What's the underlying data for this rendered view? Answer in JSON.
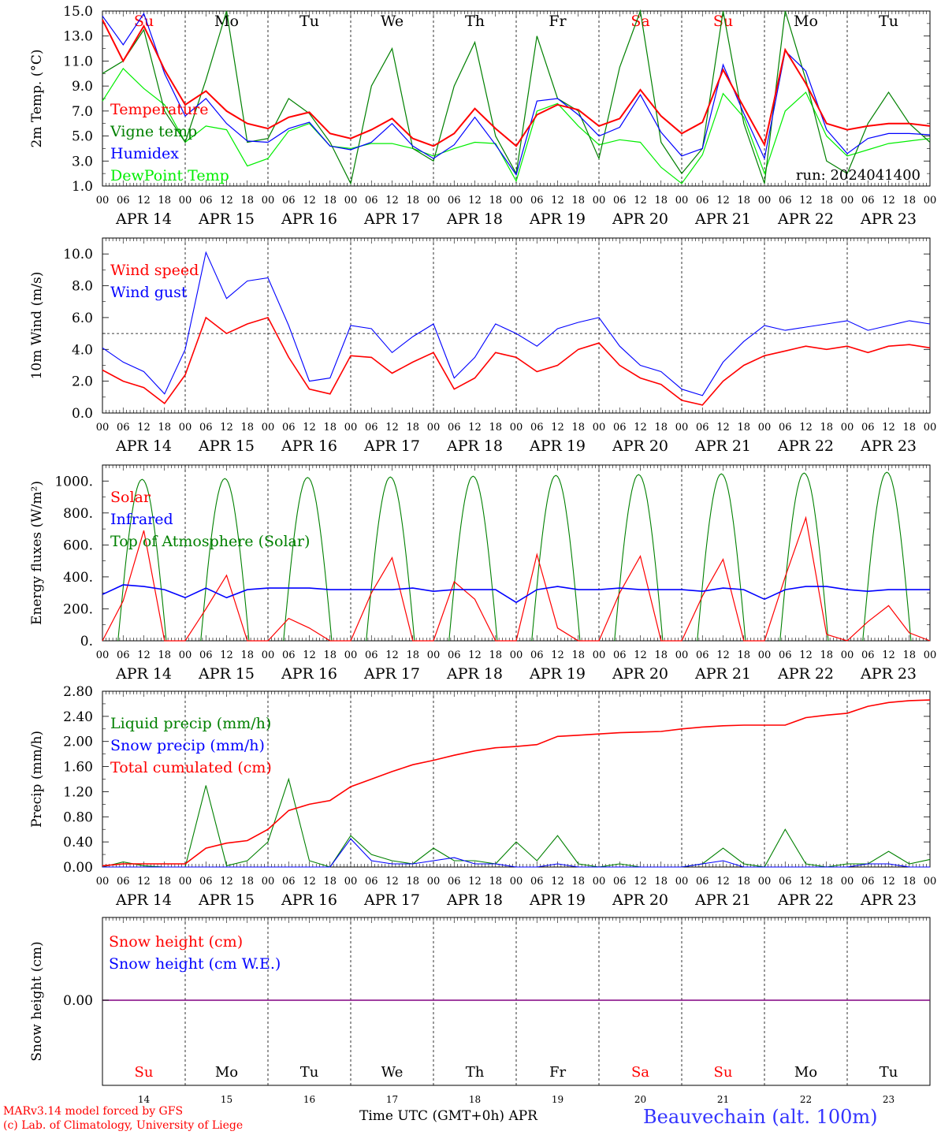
{
  "run_label": "run: 2024041400",
  "footer": {
    "model": "MARv3.14 model forced by GFS",
    "lab": "(c) Lab. of Climatology, University of Liege",
    "xlabel": "Time UTC (GMT+0h) APR",
    "station": "Beauvechain (alt. 100m)"
  },
  "colors": {
    "red": "#ff0000",
    "dark_green": "#008000",
    "blue": "#0000ff",
    "light_green": "#00ee00",
    "purple": "#800080"
  },
  "days": [
    "APR 14",
    "APR 15",
    "APR 16",
    "APR 17",
    "APR 18",
    "APR 19",
    "APR 20",
    "APR 21",
    "APR 22",
    "APR 23"
  ],
  "day_numbers": [
    "14",
    "15",
    "16",
    "17",
    "18",
    "19",
    "20",
    "21",
    "22",
    "23"
  ],
  "weekdays": [
    "Su",
    "Mo",
    "Tu",
    "We",
    "Th",
    "Fr",
    "Sa",
    "Su",
    "Mo",
    "Tu"
  ],
  "weekend_flags": [
    true,
    false,
    false,
    false,
    false,
    false,
    true,
    true,
    false,
    false
  ],
  "hour_ticks": [
    "00",
    "06",
    "12",
    "18"
  ],
  "chart_data": [
    {
      "type": "line",
      "ylabel": "2m Temp. (°C)",
      "ylim": [
        1.0,
        15.0
      ],
      "yticks": [
        "1.0",
        "3.0",
        "5.0",
        "7.0",
        "9.0",
        "11.0",
        "13.0",
        "15.0"
      ],
      "x_hours": [
        0,
        6,
        12,
        18,
        24,
        30,
        36,
        42,
        48,
        54,
        60,
        66,
        72,
        78,
        84,
        90,
        96,
        102,
        108,
        114,
        120,
        126,
        132,
        138,
        144,
        150,
        156,
        162,
        168,
        174,
        180,
        186,
        192,
        198,
        204,
        210,
        216,
        222,
        228,
        234,
        240
      ],
      "series": [
        {
          "name": "Temperature",
          "color": "#ff0000",
          "values": [
            14.3,
            11.0,
            13.8,
            10.3,
            7.5,
            8.6,
            7.0,
            6.0,
            5.6,
            6.5,
            6.9,
            5.2,
            4.8,
            5.5,
            6.4,
            4.8,
            4.2,
            5.2,
            7.2,
            5.6,
            4.2,
            6.7,
            7.5,
            7.1,
            5.8,
            6.4,
            8.7,
            6.6,
            5.2,
            6.1,
            10.3,
            7.3,
            4.3,
            11.9,
            9.2,
            6.0,
            5.5,
            5.8,
            6.0,
            6.0,
            5.8
          ]
        },
        {
          "name": "Vigne temp",
          "color": "#008000",
          "values": [
            10.0,
            11.0,
            13.5,
            7.0,
            4.5,
            9.5,
            15.0,
            4.5,
            4.8,
            8.0,
            6.8,
            4.5,
            1.2,
            9.0,
            12.0,
            4.0,
            3.0,
            9.0,
            12.5,
            5.0,
            2.0,
            13.0,
            8.0,
            7.0,
            3.2,
            10.5,
            15.0,
            4.5,
            2.0,
            4.0,
            15.0,
            6.0,
            1.2,
            15.0,
            9.5,
            3.0,
            2.0,
            6.0,
            8.5,
            6.0,
            4.5
          ]
        },
        {
          "name": "Humidex",
          "color": "#0000ff",
          "values": [
            14.6,
            12.3,
            14.8,
            10.0,
            6.6,
            8.0,
            6.0,
            4.6,
            4.5,
            5.6,
            6.1,
            4.2,
            3.9,
            4.5,
            6.0,
            4.2,
            3.2,
            4.3,
            6.5,
            4.3,
            1.9,
            7.8,
            8.0,
            6.7,
            5.0,
            5.7,
            8.3,
            5.3,
            3.4,
            4.0,
            10.7,
            6.8,
            3.2,
            11.8,
            10.2,
            5.5,
            3.6,
            4.8,
            5.2,
            5.2,
            5.1
          ]
        },
        {
          "name": "DewPoint Temp",
          "color": "#00ee00",
          "values": [
            7.8,
            10.4,
            8.8,
            7.5,
            4.5,
            5.8,
            5.5,
            2.6,
            3.2,
            5.4,
            6.0,
            4.2,
            4.0,
            4.4,
            4.4,
            4.0,
            3.4,
            4.0,
            4.5,
            4.4,
            1.4,
            7.0,
            7.6,
            5.8,
            4.3,
            4.7,
            4.5,
            2.5,
            1.2,
            3.5,
            8.4,
            6.5,
            2.0,
            7.0,
            8.5,
            5.0,
            3.4,
            3.9,
            4.4,
            4.6,
            4.8
          ]
        }
      ]
    },
    {
      "type": "line",
      "ylabel": "10m Wind (m/s)",
      "ylim": [
        0.0,
        11.0
      ],
      "yticks": [
        "0.0",
        "2.0",
        "4.0",
        "6.0",
        "8.0",
        "10.0"
      ],
      "reference_line": 5.0,
      "x_hours": [
        0,
        6,
        12,
        18,
        24,
        30,
        36,
        42,
        48,
        54,
        60,
        66,
        72,
        78,
        84,
        90,
        96,
        102,
        108,
        114,
        120,
        126,
        132,
        138,
        144,
        150,
        156,
        162,
        168,
        174,
        180,
        186,
        192,
        198,
        204,
        210,
        216,
        222,
        228,
        234,
        240
      ],
      "series": [
        {
          "name": "Wind speed",
          "color": "#ff0000",
          "values": [
            2.7,
            2.0,
            1.6,
            0.6,
            2.4,
            6.0,
            5.0,
            5.6,
            6.0,
            3.5,
            1.5,
            1.2,
            3.6,
            3.5,
            2.5,
            3.2,
            3.8,
            1.5,
            2.2,
            3.8,
            3.5,
            2.6,
            3.0,
            4.0,
            4.4,
            3.0,
            2.2,
            1.8,
            0.8,
            0.5,
            2.0,
            3.0,
            3.6,
            3.9,
            4.2,
            4.0,
            4.2,
            3.8,
            4.2,
            4.3,
            4.1
          ]
        },
        {
          "name": "Wind gust",
          "color": "#0000ff",
          "values": [
            4.1,
            3.2,
            2.6,
            1.2,
            4.0,
            10.1,
            7.2,
            8.3,
            8.5,
            5.5,
            2.0,
            2.2,
            5.5,
            5.3,
            3.8,
            4.8,
            5.6,
            2.2,
            3.5,
            5.6,
            5.0,
            4.2,
            5.3,
            5.7,
            6.0,
            4.2,
            3.0,
            2.6,
            1.5,
            1.1,
            3.2,
            4.5,
            5.5,
            5.2,
            5.4,
            5.6,
            5.8,
            5.2,
            5.5,
            5.8,
            5.6
          ]
        }
      ]
    },
    {
      "type": "line",
      "ylabel": "Energy fluxes (W/m²)",
      "ylim": [
        0,
        1100
      ],
      "yticks": [
        "0.",
        "200.",
        "400.",
        "600.",
        "800.",
        "1000."
      ],
      "x_hours": [
        0,
        6,
        12,
        18,
        24,
        30,
        36,
        42,
        48,
        54,
        60,
        66,
        72,
        78,
        84,
        90,
        96,
        102,
        108,
        114,
        120,
        126,
        132,
        138,
        144,
        150,
        156,
        162,
        168,
        174,
        180,
        186,
        192,
        198,
        204,
        210,
        216,
        222,
        228,
        234,
        240
      ],
      "series": [
        {
          "name": "Solar",
          "color": "#ff0000",
          "values": [
            0,
            250,
            690,
            0,
            0,
            200,
            410,
            0,
            0,
            140,
            80,
            0,
            0,
            300,
            520,
            0,
            0,
            370,
            260,
            0,
            0,
            540,
            80,
            0,
            0,
            300,
            530,
            0,
            0,
            280,
            510,
            0,
            0,
            400,
            770,
            40,
            0,
            120,
            220,
            50,
            0
          ]
        },
        {
          "name": "Infrared",
          "color": "#0000ff",
          "values": [
            290,
            350,
            340,
            320,
            270,
            330,
            270,
            320,
            330,
            330,
            330,
            320,
            320,
            320,
            320,
            330,
            310,
            320,
            320,
            320,
            240,
            320,
            340,
            320,
            320,
            330,
            320,
            320,
            320,
            310,
            330,
            320,
            260,
            320,
            340,
            340,
            320,
            310,
            320,
            320,
            320
          ]
        },
        {
          "name": "Top of Atmosphere (Solar)",
          "color": "#008000",
          "peaks": [
            1010,
            1015,
            1022,
            1025,
            1030,
            1035,
            1040,
            1045,
            1050,
            1055
          ],
          "sunrise_hour": 4.5,
          "sunset_hour": 18.5
        }
      ]
    },
    {
      "type": "line",
      "ylabel": "Precip (mm/h)",
      "ylim": [
        0.0,
        2.8
      ],
      "yticks": [
        "0.00",
        "0.40",
        "0.80",
        "1.20",
        "1.60",
        "2.00",
        "2.40",
        "2.80"
      ],
      "x_hours": [
        0,
        6,
        12,
        18,
        24,
        30,
        36,
        42,
        48,
        54,
        60,
        66,
        72,
        78,
        84,
        90,
        96,
        102,
        108,
        114,
        120,
        126,
        132,
        138,
        144,
        150,
        156,
        162,
        168,
        174,
        180,
        186,
        192,
        198,
        204,
        210,
        216,
        222,
        228,
        234,
        240
      ],
      "series": [
        {
          "name": "Liquid precip (mm/h)",
          "color": "#008000",
          "values": [
            0,
            0.08,
            0.02,
            0,
            0,
            1.3,
            0.02,
            0.1,
            0.4,
            1.4,
            0.1,
            0,
            0.5,
            0.2,
            0.1,
            0.05,
            0.3,
            0.1,
            0.1,
            0.05,
            0.4,
            0.1,
            0.5,
            0.05,
            0,
            0.05,
            0,
            0,
            0,
            0.05,
            0.3,
            0.05,
            0,
            0.6,
            0.05,
            0,
            0.05,
            0.05,
            0.25,
            0.05,
            0.12
          ]
        },
        {
          "name": "Snow precip (mm/h)",
          "color": "#0000ff",
          "values": [
            0,
            0,
            0,
            0,
            0,
            0,
            0,
            0,
            0,
            0,
            0,
            0,
            0.45,
            0.1,
            0.05,
            0.05,
            0.1,
            0.15,
            0.05,
            0.05,
            0,
            0,
            0.05,
            0,
            0,
            0,
            0,
            0,
            0,
            0.05,
            0.1,
            0,
            0,
            0,
            0,
            0,
            0,
            0.05,
            0.05,
            0,
            0
          ]
        },
        {
          "name": "Total cumulated (cm)",
          "color": "#ff0000",
          "values": [
            0.02,
            0.05,
            0.05,
            0.05,
            0.05,
            0.3,
            0.38,
            0.42,
            0.6,
            0.9,
            1.0,
            1.06,
            1.28,
            1.4,
            1.52,
            1.63,
            1.7,
            1.78,
            1.85,
            1.9,
            1.92,
            1.95,
            2.08,
            2.1,
            2.12,
            2.14,
            2.15,
            2.16,
            2.2,
            2.23,
            2.25,
            2.26,
            2.26,
            2.26,
            2.38,
            2.42,
            2.45,
            2.56,
            2.62,
            2.65,
            2.66
          ]
        }
      ]
    },
    {
      "type": "line",
      "ylabel": "Snow height (cm)",
      "yticks": [
        "0.00"
      ],
      "series": [
        {
          "name": "Snow height (cm)",
          "color": "#ff0000",
          "values": [
            0,
            0
          ]
        },
        {
          "name": "Snow height (cm W.E.)",
          "color": "#0000ff",
          "values": [
            0,
            0
          ]
        }
      ]
    }
  ]
}
